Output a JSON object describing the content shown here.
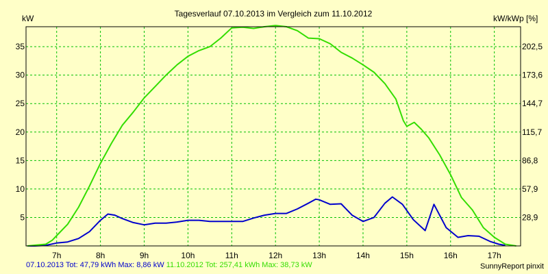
{
  "chart_data": {
    "type": "line",
    "title": "Tagesverlauf 07.10.2013 im Vergleich zum 11.10.2012",
    "ylabel_left": "kW",
    "ylabel_right": "kW/kWp [%]",
    "ylim": [
      0,
      38.5
    ],
    "xlim": [
      6.3,
      17.6
    ],
    "x_ticks": [
      {
        "x": 7,
        "label": "7h"
      },
      {
        "x": 8,
        "label": "8h"
      },
      {
        "x": 9,
        "label": "9h"
      },
      {
        "x": 10,
        "label": "10h"
      },
      {
        "x": 11,
        "label": "11h"
      },
      {
        "x": 12,
        "label": "12h"
      },
      {
        "x": 13,
        "label": "13h"
      },
      {
        "x": 14,
        "label": "14h"
      },
      {
        "x": 15,
        "label": "15h"
      },
      {
        "x": 16,
        "label": "16h"
      },
      {
        "x": 17,
        "label": "17h"
      }
    ],
    "y_ticks_left": [
      {
        "y": 5,
        "label": "5"
      },
      {
        "y": 10,
        "label": "10"
      },
      {
        "y": 15,
        "label": "15"
      },
      {
        "y": 20,
        "label": "20"
      },
      {
        "y": 25,
        "label": "25"
      },
      {
        "y": 30,
        "label": "30"
      },
      {
        "y": 35,
        "label": "35"
      }
    ],
    "y_ticks_right": [
      {
        "y": 5,
        "label": "28,9"
      },
      {
        "y": 10,
        "label": "57,9"
      },
      {
        "y": 15,
        "label": "86,8"
      },
      {
        "y": 20,
        "label": "115,7"
      },
      {
        "y": 25,
        "label": "144,7"
      },
      {
        "y": 30,
        "label": "173,6"
      },
      {
        "y": 35,
        "label": "202,5"
      }
    ],
    "grid": true,
    "series": [
      {
        "name": "07.10.2013",
        "color": "#0000CC",
        "x": [
          6.33,
          6.5,
          6.75,
          7.0,
          7.25,
          7.5,
          7.75,
          8.0,
          8.17,
          8.33,
          8.5,
          8.75,
          9.0,
          9.25,
          9.5,
          9.75,
          10.0,
          10.25,
          10.5,
          10.75,
          11.0,
          11.25,
          11.5,
          11.75,
          12.0,
          12.25,
          12.5,
          12.75,
          12.92,
          13.0,
          13.25,
          13.5,
          13.75,
          14.0,
          14.25,
          14.5,
          14.67,
          14.9,
          15.15,
          15.42,
          15.62,
          15.9,
          16.17,
          16.4,
          16.65,
          16.9,
          17.1,
          17.25
        ],
        "values": [
          0,
          0,
          0.1,
          0.5,
          0.7,
          1.3,
          2.5,
          4.5,
          5.6,
          5.4,
          4.8,
          4.1,
          3.7,
          4.0,
          4.0,
          4.2,
          4.5,
          4.5,
          4.3,
          4.3,
          4.3,
          4.3,
          4.9,
          5.4,
          5.7,
          5.7,
          6.5,
          7.5,
          8.2,
          8.1,
          7.3,
          7.4,
          5.4,
          4.3,
          5.0,
          7.5,
          8.6,
          7.3,
          4.6,
          2.7,
          7.3,
          3.2,
          1.5,
          1.8,
          1.7,
          0.8,
          0.3,
          0.1
        ]
      },
      {
        "name": "11.10.2012",
        "color": "#33DD00",
        "x": [
          6.33,
          6.75,
          6.9,
          7.0,
          7.25,
          7.5,
          7.75,
          8.0,
          8.25,
          8.5,
          8.75,
          9.0,
          9.25,
          9.5,
          9.75,
          10.0,
          10.25,
          10.5,
          10.75,
          11.0,
          11.25,
          11.5,
          11.75,
          12.0,
          12.25,
          12.5,
          12.75,
          13.0,
          13.25,
          13.5,
          13.75,
          14.0,
          14.25,
          14.5,
          14.75,
          14.92,
          15.0,
          15.17,
          15.33,
          15.5,
          15.75,
          16.0,
          16.25,
          16.5,
          16.75,
          17.0,
          17.25,
          17.5
        ],
        "values": [
          0,
          0.3,
          1.0,
          1.8,
          3.8,
          6.8,
          10.5,
          14.5,
          18.0,
          21.2,
          23.5,
          26.0,
          28.0,
          30.0,
          31.8,
          33.3,
          34.3,
          35.0,
          36.5,
          38.3,
          38.4,
          38.2,
          38.5,
          38.7,
          38.5,
          37.8,
          36.5,
          36.4,
          35.5,
          34.0,
          33.0,
          31.8,
          30.5,
          28.5,
          25.8,
          22.0,
          21.0,
          21.7,
          20.5,
          19.0,
          16.0,
          12.5,
          8.5,
          6.3,
          3.2,
          1.5,
          0.3,
          0
        ]
      }
    ]
  },
  "legend": {
    "series1_text": "07.10.2013 Tot: 47,79 kWh Max: 8,86 kW",
    "series1_color": "#0000CC",
    "series2_text": "11.10.2012 Tot: 257,41 kWh Max: 38,73 kW",
    "series2_color": "#33DD00"
  },
  "credit": "SunnyReport pinxit"
}
